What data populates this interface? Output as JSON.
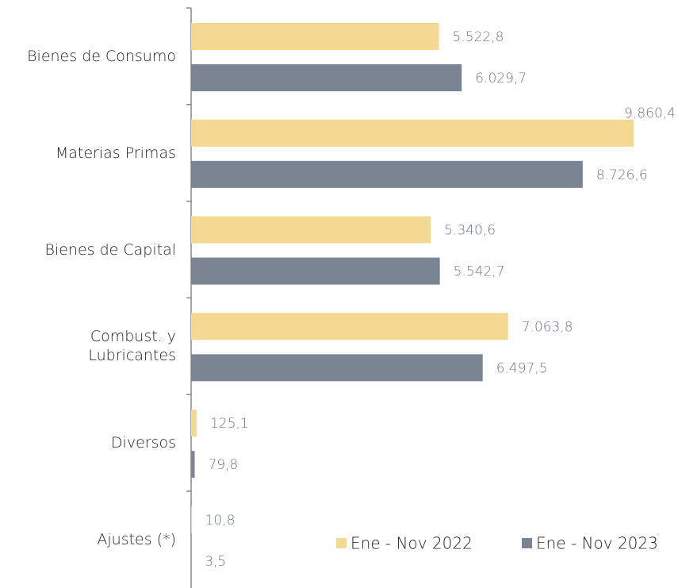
{
  "chart_data": {
    "type": "bar",
    "orientation": "horizontal",
    "categories": [
      "Bienes de Consumo",
      "Materias Primas",
      "Bienes de Capital",
      "Combust. y\nLubricantes",
      "Diversos",
      "Ajustes (*)"
    ],
    "series": [
      {
        "name": "Ene - Nov 2022",
        "color": "#f3d992",
        "values": [
          5522.8,
          9860.4,
          5340.6,
          7063.8,
          125.1,
          10.8
        ],
        "value_labels": [
          "5.522,8",
          "9.860,4",
          "5.340,6",
          "7.063,8",
          "125,1",
          "10,8"
        ]
      },
      {
        "name": "Ene - Nov 2023",
        "color": "#7a8493",
        "values": [
          6029.7,
          8726.6,
          5542.7,
          6497.5,
          79.8,
          3.5
        ],
        "value_labels": [
          "6.029,7",
          "8.726,6",
          "5.542,7",
          "6.497,5",
          "79,8",
          "3,5"
        ]
      }
    ],
    "legend": "lower right"
  }
}
